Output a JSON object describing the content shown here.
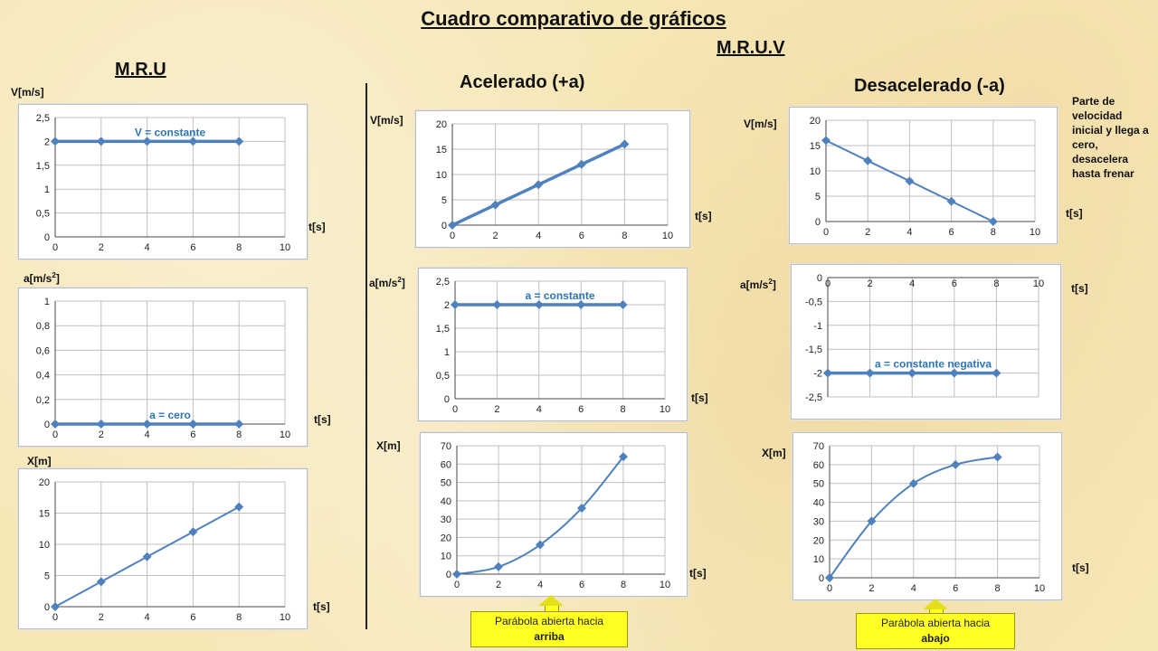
{
  "page": {
    "title": "Cuadro comparativo de gráficos",
    "mru_heading": "M.R.U",
    "mruv_heading": "M.R.U.V",
    "accel_heading": "Acelerado (+a)",
    "decel_heading": "Desacelerado (-a)",
    "decel_note": "Parte de velocidad inicial y llega a cero, desacelera hasta frenar",
    "callout_up": {
      "line1": "Parábola abierta hacia",
      "line2": "arriba"
    },
    "callout_down": {
      "line1": "Parábola abierta hacia",
      "line2": "abajo"
    }
  },
  "labels": {
    "v_unit": "V[m/s]",
    "a_unit_base": "a[m/s",
    "a_unit_exp": "2",
    "a_unit_close": "]",
    "x_unit": "X[m]",
    "t_unit": "t[s]"
  },
  "colors": {
    "series": "#4f81bd",
    "grid": "#bfbfbf",
    "annotation": "#2e75b6",
    "callout": "#ffff22"
  },
  "chart_data": [
    {
      "id": "mru_v",
      "type": "line",
      "x": [
        0,
        2,
        4,
        6,
        8
      ],
      "y": [
        2,
        2,
        2,
        2,
        2
      ],
      "xlim": [
        0,
        10
      ],
      "ylim": [
        0,
        2.5
      ],
      "xticks": [
        "0",
        "2",
        "4",
        "6",
        "8",
        "10"
      ],
      "yticks": [
        "0",
        "0,5",
        "1",
        "1,5",
        "2",
        "2,5"
      ],
      "annotation": "V = constante",
      "thick": true,
      "grid": true
    },
    {
      "id": "mru_a",
      "type": "line",
      "x": [
        0,
        2,
        4,
        6,
        8
      ],
      "y": [
        0,
        0,
        0,
        0,
        0
      ],
      "xlim": [
        0,
        10
      ],
      "ylim": [
        0,
        1
      ],
      "xticks": [
        "0",
        "2",
        "4",
        "6",
        "8",
        "10"
      ],
      "yticks": [
        "0",
        "0,2",
        "0,4",
        "0,6",
        "0,8",
        "1"
      ],
      "annotation": "a = cero",
      "thick": true,
      "grid": true
    },
    {
      "id": "mru_x",
      "type": "line",
      "x": [
        0,
        2,
        4,
        6,
        8
      ],
      "y": [
        0,
        4,
        8,
        12,
        16
      ],
      "xlim": [
        0,
        10
      ],
      "ylim": [
        0,
        20
      ],
      "xticks": [
        "0",
        "2",
        "4",
        "6",
        "8",
        "10"
      ],
      "yticks": [
        "0",
        "5",
        "10",
        "15",
        "20"
      ],
      "annotation": "",
      "thick": false,
      "grid": true
    },
    {
      "id": "acc_v",
      "type": "line",
      "x": [
        0,
        2,
        4,
        6,
        8
      ],
      "y": [
        0,
        4,
        8,
        12,
        16
      ],
      "xlim": [
        0,
        10
      ],
      "ylim": [
        0,
        20
      ],
      "xticks": [
        "0",
        "2",
        "4",
        "6",
        "8",
        "10"
      ],
      "yticks": [
        "0",
        "5",
        "10",
        "15",
        "20"
      ],
      "annotation": "",
      "thick": true,
      "grid": true
    },
    {
      "id": "acc_a",
      "type": "line",
      "x": [
        0,
        2,
        4,
        6,
        8
      ],
      "y": [
        2,
        2,
        2,
        2,
        2
      ],
      "xlim": [
        0,
        10
      ],
      "ylim": [
        0,
        2.5
      ],
      "xticks": [
        "0",
        "2",
        "4",
        "6",
        "8",
        "10"
      ],
      "yticks": [
        "0",
        "0,5",
        "1",
        "1,5",
        "2",
        "2,5"
      ],
      "annotation": "a = constante",
      "thick": true,
      "grid": true
    },
    {
      "id": "acc_x",
      "type": "line",
      "x": [
        0,
        2,
        4,
        6,
        8
      ],
      "y": [
        0,
        4,
        16,
        36,
        64
      ],
      "xlim": [
        0,
        10
      ],
      "ylim": [
        0,
        70
      ],
      "xticks": [
        "0",
        "2",
        "4",
        "6",
        "8",
        "10"
      ],
      "yticks": [
        "0",
        "10",
        "20",
        "30",
        "40",
        "50",
        "60",
        "70"
      ],
      "annotation": "",
      "thick": false,
      "smooth": true,
      "grid": true
    },
    {
      "id": "dec_v",
      "type": "line",
      "x": [
        0,
        2,
        4,
        6,
        8
      ],
      "y": [
        16,
        12,
        8,
        4,
        0
      ],
      "xlim": [
        0,
        10
      ],
      "ylim": [
        0,
        20
      ],
      "xticks": [
        "0",
        "2",
        "4",
        "6",
        "8",
        "10"
      ],
      "yticks": [
        "0",
        "5",
        "10",
        "15",
        "20"
      ],
      "annotation": "",
      "thick": false,
      "grid": true
    },
    {
      "id": "dec_a",
      "type": "line",
      "x": [
        0,
        2,
        4,
        6,
        8
      ],
      "y": [
        -2,
        -2,
        -2,
        -2,
        -2
      ],
      "xlim": [
        0,
        10
      ],
      "ylim": [
        -2.5,
        0
      ],
      "xticks": [
        "0",
        "2",
        "4",
        "6",
        "8",
        "10"
      ],
      "yticks": [
        "-2,5",
        "-2",
        "-1,5",
        "-1",
        "-0,5",
        "0"
      ],
      "annotation": "a = constante negativa",
      "thick": true,
      "xaxis_top": true,
      "grid": true
    },
    {
      "id": "dec_x",
      "type": "line",
      "x": [
        0,
        2,
        4,
        6,
        8
      ],
      "y": [
        0,
        30,
        50,
        60,
        64
      ],
      "xlim": [
        0,
        10
      ],
      "ylim": [
        0,
        70
      ],
      "xticks": [
        "0",
        "2",
        "4",
        "6",
        "8",
        "10"
      ],
      "yticks": [
        "0",
        "10",
        "20",
        "30",
        "40",
        "50",
        "60",
        "70"
      ],
      "annotation": "",
      "thick": false,
      "smooth": true,
      "grid": true
    }
  ]
}
